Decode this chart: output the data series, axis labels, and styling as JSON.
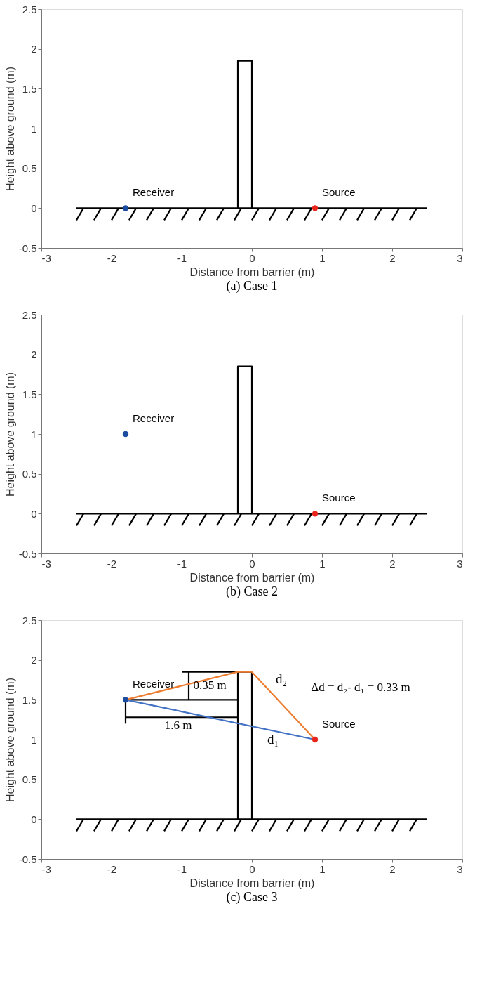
{
  "chart_data": [
    {
      "type": "scatter",
      "title": "(a) Case 1",
      "xlabel": "Distance from barrier (m)",
      "ylabel": "Height above ground (m)",
      "xlim": [
        -3,
        3
      ],
      "ylim": [
        -0.5,
        2.5
      ],
      "xticks": [
        -3,
        -2,
        -1,
        0,
        1,
        2,
        3
      ],
      "yticks": [
        -0.5,
        0,
        0.5,
        1,
        1.5,
        2,
        2.5
      ],
      "grid": false,
      "legend": false,
      "series": [
        {
          "type": "line",
          "color": "#000000",
          "x": [
            -2.5,
            2.5
          ],
          "values": [
            0,
            0
          ]
        },
        {
          "type": "line",
          "color": "#000000",
          "x": [
            -2.5,
            -2.4,
            null,
            -2.25,
            -2.15,
            null,
            -2.0,
            -1.9,
            null,
            -1.75,
            -1.65,
            null,
            -1.5,
            -1.4,
            null,
            -1.25,
            -1.15,
            null,
            -1.0,
            -0.9,
            null,
            -0.75,
            -0.65,
            null,
            -0.5,
            -0.4,
            null,
            -0.25,
            -0.15,
            null,
            0.0,
            0.1,
            null,
            0.25,
            0.35,
            null,
            0.5,
            0.6,
            null,
            0.75,
            0.85,
            null,
            1.0,
            1.1,
            null,
            1.25,
            1.35,
            null,
            1.5,
            1.6,
            null,
            1.75,
            1.85,
            null,
            2.0,
            2.1,
            null,
            2.25,
            2.35
          ],
          "values": [
            -0.15,
            0,
            null,
            -0.15,
            0,
            null,
            -0.15,
            0,
            null,
            -0.15,
            0,
            null,
            -0.15,
            0,
            null,
            -0.15,
            0,
            null,
            -0.15,
            0,
            null,
            -0.15,
            0,
            null,
            -0.15,
            0,
            null,
            -0.15,
            0,
            null,
            -0.15,
            0,
            null,
            -0.15,
            0,
            null,
            -0.15,
            0,
            null,
            -0.15,
            0,
            null,
            -0.15,
            0,
            null,
            -0.15,
            0,
            null,
            -0.15,
            0,
            null,
            -0.15,
            0,
            null,
            -0.15,
            0,
            null,
            -0.15,
            0
          ]
        },
        {
          "type": "line",
          "color": "#000000",
          "x": [
            -0.2,
            -0.2,
            0,
            0
          ],
          "values": [
            0,
            1.85,
            1.85,
            0
          ]
        },
        {
          "type": "scatter",
          "name": "Receiver",
          "color": "#1c4ca0",
          "x": [
            -1.8
          ],
          "values": [
            0
          ]
        },
        {
          "type": "scatter",
          "name": "Source",
          "color": "#e8231c",
          "x": [
            0.9
          ],
          "values": [
            0
          ]
        }
      ]
    },
    {
      "type": "scatter",
      "title": "(b) Case 2",
      "xlabel": "Distance from barrier (m)",
      "ylabel": "Height above ground (m)",
      "xlim": [
        -3,
        3
      ],
      "ylim": [
        -0.5,
        2.5
      ],
      "xticks": [
        -3,
        -2,
        -1,
        0,
        1,
        2,
        3
      ],
      "yticks": [
        -0.5,
        0,
        0.5,
        1,
        1.5,
        2,
        2.5
      ],
      "grid": false,
      "legend": false,
      "series": [
        {
          "type": "line",
          "color": "#000000",
          "x": [
            -2.5,
            2.5
          ],
          "values": [
            0,
            0
          ]
        },
        {
          "type": "line",
          "color": "#000000",
          "x": [
            -2.5,
            -2.4,
            null,
            -2.25,
            -2.15,
            null,
            -2.0,
            -1.9,
            null,
            -1.75,
            -1.65,
            null,
            -1.5,
            -1.4,
            null,
            -1.25,
            -1.15,
            null,
            -1.0,
            -0.9,
            null,
            -0.75,
            -0.65,
            null,
            -0.5,
            -0.4,
            null,
            -0.25,
            -0.15,
            null,
            0.0,
            0.1,
            null,
            0.25,
            0.35,
            null,
            0.5,
            0.6,
            null,
            0.75,
            0.85,
            null,
            1.0,
            1.1,
            null,
            1.25,
            1.35,
            null,
            1.5,
            1.6,
            null,
            1.75,
            1.85,
            null,
            2.0,
            2.1,
            null,
            2.25,
            2.35
          ],
          "values": [
            -0.15,
            0,
            null,
            -0.15,
            0,
            null,
            -0.15,
            0,
            null,
            -0.15,
            0,
            null,
            -0.15,
            0,
            null,
            -0.15,
            0,
            null,
            -0.15,
            0,
            null,
            -0.15,
            0,
            null,
            -0.15,
            0,
            null,
            -0.15,
            0,
            null,
            -0.15,
            0,
            null,
            -0.15,
            0,
            null,
            -0.15,
            0,
            null,
            -0.15,
            0,
            null,
            -0.15,
            0,
            null,
            -0.15,
            0,
            null,
            -0.15,
            0,
            null,
            -0.15,
            0,
            null,
            -0.15,
            0,
            null,
            -0.15,
            0
          ]
        },
        {
          "type": "line",
          "color": "#000000",
          "x": [
            -0.2,
            -0.2,
            0,
            0
          ],
          "values": [
            0,
            1.85,
            1.85,
            0
          ]
        },
        {
          "type": "scatter",
          "name": "Receiver",
          "color": "#1c4ca0",
          "x": [
            -1.8
          ],
          "values": [
            1
          ]
        },
        {
          "type": "scatter",
          "name": "Source",
          "color": "#e8231c",
          "x": [
            0.9
          ],
          "values": [
            0
          ]
        }
      ]
    },
    {
      "type": "scatter",
      "title": "(c) Case 3",
      "xlabel": "Distance from barrier (m)",
      "ylabel": "Height above ground (m)",
      "xlim": [
        -3,
        3
      ],
      "ylim": [
        -0.5,
        2.5
      ],
      "xticks": [
        -3,
        -2,
        -1,
        0,
        1,
        2,
        3
      ],
      "yticks": [
        -0.5,
        0,
        0.5,
        1,
        1.5,
        2,
        2.5
      ],
      "grid": false,
      "legend": false,
      "annotations": [
        "0.35 m",
        "1.6 m",
        "d₂",
        "d₁",
        "Δd = d₂- d₁ = 0.33 m"
      ],
      "series": [
        {
          "type": "line",
          "color": "#000000",
          "x": [
            -2.5,
            2.5
          ],
          "values": [
            0,
            0
          ]
        },
        {
          "type": "line",
          "color": "#000000",
          "x": [
            -2.5,
            -2.4,
            null,
            -2.25,
            -2.15,
            null,
            -2.0,
            -1.9,
            null,
            -1.75,
            -1.65,
            null,
            -1.5,
            -1.4,
            null,
            -1.25,
            -1.15,
            null,
            -1.0,
            -0.9,
            null,
            -0.75,
            -0.65,
            null,
            -0.5,
            -0.4,
            null,
            -0.25,
            -0.15,
            null,
            0.0,
            0.1,
            null,
            0.25,
            0.35,
            null,
            0.5,
            0.6,
            null,
            0.75,
            0.85,
            null,
            1.0,
            1.1,
            null,
            1.25,
            1.35,
            null,
            1.5,
            1.6,
            null,
            1.75,
            1.85,
            null,
            2.0,
            2.1,
            null,
            2.25,
            2.35
          ],
          "values": [
            -0.15,
            0,
            null,
            -0.15,
            0,
            null,
            -0.15,
            0,
            null,
            -0.15,
            0,
            null,
            -0.15,
            0,
            null,
            -0.15,
            0,
            null,
            -0.15,
            0,
            null,
            -0.15,
            0,
            null,
            -0.15,
            0,
            null,
            -0.15,
            0,
            null,
            -0.15,
            0,
            null,
            -0.15,
            0,
            null,
            -0.15,
            0,
            null,
            -0.15,
            0,
            null,
            -0.15,
            0,
            null,
            -0.15,
            0,
            null,
            -0.15,
            0,
            null,
            -0.15,
            0,
            null,
            -0.15,
            0,
            null,
            -0.15,
            0
          ]
        },
        {
          "type": "line",
          "color": "#000000",
          "x": [
            -0.2,
            -0.2,
            0,
            0
          ],
          "values": [
            0,
            1.85,
            1.85,
            0
          ]
        },
        {
          "type": "line",
          "color": "#000000",
          "x": [
            -1.0,
            -0.2
          ],
          "values": [
            1.85,
            1.85
          ]
        },
        {
          "type": "line",
          "color": "#000000",
          "x": [
            -1.8,
            -0.2
          ],
          "values": [
            1.5,
            1.5
          ]
        },
        {
          "type": "line",
          "color": "#000000",
          "x": [
            -1.8,
            -1.8
          ],
          "values": [
            1.5,
            1.2
          ]
        },
        {
          "type": "line",
          "color": "#000000",
          "x": [
            -1.8,
            -0.2
          ],
          "values": [
            1.28,
            1.28
          ]
        },
        {
          "type": "line",
          "color": "#000000",
          "x": [
            -0.9,
            -0.9
          ],
          "values": [
            1.5,
            1.85
          ]
        },
        {
          "type": "line",
          "color": "#4472c4",
          "x": [
            -1.8,
            0.9
          ],
          "values": [
            1.5,
            1.0
          ]
        },
        {
          "type": "line",
          "color": "#ed7d31",
          "x": [
            -1.8,
            -0.2,
            0,
            0.9
          ],
          "values": [
            1.5,
            1.85,
            1.85,
            1.0
          ]
        },
        {
          "type": "scatter",
          "name": "Receiver",
          "color": "#1c4ca0",
          "x": [
            -1.8
          ],
          "values": [
            1.5
          ]
        },
        {
          "type": "scatter",
          "name": "Source",
          "color": "#e8231c",
          "x": [
            0.9
          ],
          "values": [
            1.0
          ]
        }
      ]
    }
  ]
}
